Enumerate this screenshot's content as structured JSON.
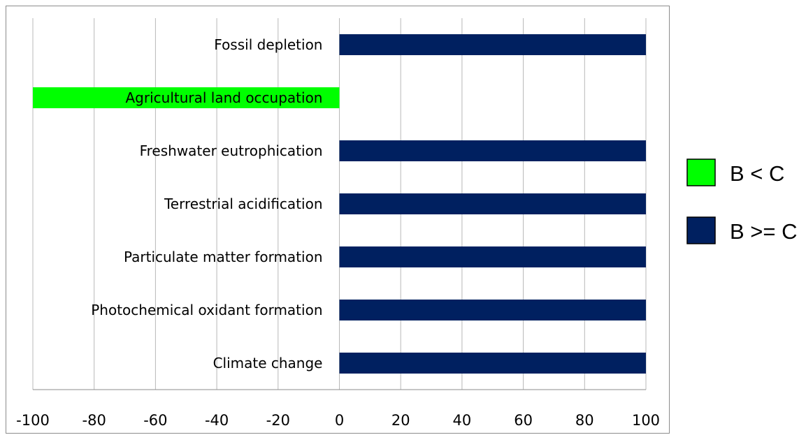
{
  "chart_data": {
    "type": "bar",
    "orientation": "horizontal",
    "categories": [
      "Fossil depletion",
      "Agricultural land occupation",
      "Freshwater eutrophication",
      "Terrestrial acidification",
      "Particulate matter formation",
      "Photochemical oxidant formation",
      "Climate change"
    ],
    "values": [
      100,
      -100,
      100,
      100,
      100,
      100,
      100
    ],
    "bar_groups": [
      "B >= C",
      "B < C",
      "B >= C",
      "B >= C",
      "B >= C",
      "B >= C",
      "B >= C"
    ],
    "xlim": [
      -100,
      100
    ],
    "xticks": [
      "-100",
      "-80",
      "-60",
      "-40",
      "-20",
      "0",
      "20",
      "40",
      "60",
      "80",
      "100"
    ],
    "grid": "vertical",
    "legend_position": "right",
    "legend": [
      {
        "label": "B < C",
        "color": "#00ff00"
      },
      {
        "label": "B >= C",
        "color": "#002060"
      }
    ],
    "title": "",
    "xlabel": "",
    "ylabel": ""
  }
}
